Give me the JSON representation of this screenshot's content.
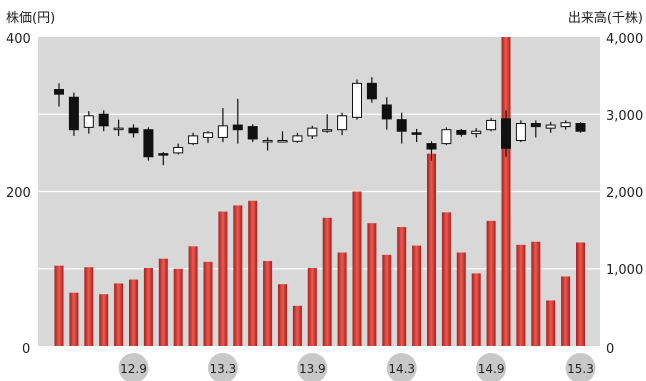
{
  "chart_data": {
    "type": "candlestick+bar",
    "left_axis_title": "株価(円)",
    "right_axis_title": "出来高(千株)",
    "left_ticks": [
      "400",
      "200",
      "0"
    ],
    "right_ticks": [
      "4,000",
      "3,000",
      "2,000",
      "1,000",
      "0"
    ],
    "ylim_price": [
      0,
      400
    ],
    "ylim_volume": [
      0,
      4000
    ],
    "x_labels": [
      {
        "label": "12.9",
        "index": 5
      },
      {
        "label": "13.3",
        "index": 11
      },
      {
        "label": "13.9",
        "index": 17
      },
      {
        "label": "14.3",
        "index": 23
      },
      {
        "label": "14.9",
        "index": 29
      },
      {
        "label": "15.3",
        "index": 35
      }
    ],
    "candles": [
      {
        "o": 332,
        "h": 340,
        "l": 310,
        "c": 326
      },
      {
        "o": 322,
        "h": 328,
        "l": 272,
        "c": 280
      },
      {
        "o": 283,
        "h": 304,
        "l": 275,
        "c": 298
      },
      {
        "o": 300,
        "h": 305,
        "l": 278,
        "c": 285
      },
      {
        "o": 282,
        "h": 293,
        "l": 272,
        "c": 282
      },
      {
        "o": 282,
        "h": 287,
        "l": 270,
        "c": 276
      },
      {
        "o": 280,
        "h": 283,
        "l": 240,
        "c": 245
      },
      {
        "o": 249,
        "h": 251,
        "l": 234,
        "c": 248
      },
      {
        "o": 250,
        "h": 262,
        "l": 248,
        "c": 257
      },
      {
        "o": 262,
        "h": 276,
        "l": 260,
        "c": 272
      },
      {
        "o": 270,
        "h": 278,
        "l": 263,
        "c": 276
      },
      {
        "o": 270,
        "h": 308,
        "l": 264,
        "c": 285
      },
      {
        "o": 286,
        "h": 320,
        "l": 262,
        "c": 280
      },
      {
        "o": 284,
        "h": 287,
        "l": 264,
        "c": 268
      },
      {
        "o": 266,
        "h": 270,
        "l": 253,
        "c": 266
      },
      {
        "o": 266,
        "h": 278,
        "l": 264,
        "c": 266
      },
      {
        "o": 265,
        "h": 276,
        "l": 263,
        "c": 272
      },
      {
        "o": 272,
        "h": 285,
        "l": 268,
        "c": 282
      },
      {
        "o": 278,
        "h": 300,
        "l": 276,
        "c": 280
      },
      {
        "o": 280,
        "h": 302,
        "l": 273,
        "c": 298
      },
      {
        "o": 296,
        "h": 345,
        "l": 293,
        "c": 340
      },
      {
        "o": 340,
        "h": 348,
        "l": 315,
        "c": 320
      },
      {
        "o": 312,
        "h": 322,
        "l": 280,
        "c": 294
      },
      {
        "o": 293,
        "h": 302,
        "l": 262,
        "c": 278
      },
      {
        "o": 276,
        "h": 281,
        "l": 264,
        "c": 274
      },
      {
        "o": 262,
        "h": 265,
        "l": 240,
        "c": 255
      },
      {
        "o": 262,
        "h": 283,
        "l": 260,
        "c": 280
      },
      {
        "o": 279,
        "h": 281,
        "l": 271,
        "c": 274
      },
      {
        "o": 275,
        "h": 282,
        "l": 270,
        "c": 278
      },
      {
        "o": 280,
        "h": 295,
        "l": 278,
        "c": 292
      },
      {
        "o": 294,
        "h": 305,
        "l": 245,
        "c": 256
      },
      {
        "o": 266,
        "h": 292,
        "l": 264,
        "c": 288
      },
      {
        "o": 288,
        "h": 292,
        "l": 270,
        "c": 284
      },
      {
        "o": 282,
        "h": 290,
        "l": 276,
        "c": 286
      },
      {
        "o": 284,
        "h": 292,
        "l": 280,
        "c": 289
      },
      {
        "o": 288,
        "h": 290,
        "l": 276,
        "c": 278
      }
    ],
    "volume": [
      1040,
      690,
      1020,
      670,
      810,
      860,
      1010,
      1130,
      1000,
      1290,
      1090,
      1740,
      1820,
      1880,
      1100,
      800,
      520,
      1010,
      1660,
      1210,
      2000,
      1590,
      1180,
      1540,
      1300,
      2490,
      1730,
      1210,
      940,
      1620,
      4000,
      1310,
      1350,
      590,
      900,
      1340
    ]
  }
}
